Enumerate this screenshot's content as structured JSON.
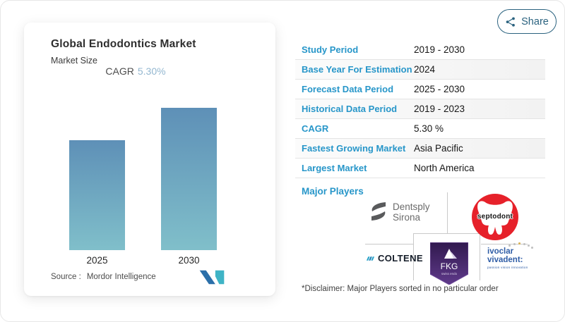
{
  "share_button": {
    "label": "Share"
  },
  "chart_card": {
    "title": "Global Endodontics Market",
    "subtitle": "Market Size",
    "cagr_label": "CAGR",
    "cagr_value": "5.30%",
    "source_label": "Source :",
    "source_name": "Mordor Intelligence"
  },
  "chart_data": {
    "type": "bar",
    "title": "Global Endodontics Market - Market Size",
    "categories": [
      "2025",
      "2030"
    ],
    "values_relative_pct": [
      77,
      100
    ],
    "cagr": "5.30%",
    "ylabel": "",
    "note": "No numeric y-axis shown; bar heights are relative, 2030 bar taller than 2025.",
    "bar_gradient_top": "#5e90b7",
    "bar_gradient_bottom": "#80bfca"
  },
  "info_table": {
    "rows": [
      {
        "label": "Study Period",
        "value": "2019 - 2030"
      },
      {
        "label": "Base Year For Estimation",
        "value": "2024"
      },
      {
        "label": "Forecast Data Period",
        "value": "2025 - 2030"
      },
      {
        "label": "Historical Data Period",
        "value": "2019 - 2023"
      },
      {
        "label": "CAGR",
        "value": "5.30 %"
      },
      {
        "label": "Fastest Growing Market",
        "value": "Asia Pacific"
      },
      {
        "label": "Largest Market",
        "value": "North America"
      }
    ]
  },
  "major_players": {
    "heading": "Major Players",
    "disclaimer": "*Disclaimer: Major Players sorted in no particular order",
    "players": [
      {
        "name": "Dentsply Sirona",
        "line1": "Dentsply",
        "line2": "Sirona"
      },
      {
        "name": "Septodont",
        "text": "septodont"
      },
      {
        "name": "Coltene",
        "text": "COLTENE"
      },
      {
        "name": "FKG Swiss Endo",
        "text": "FKG",
        "sub": "swiss endo"
      },
      {
        "name": "Ivoclar Vivadent",
        "line1": "ivoclar",
        "line2": "vivadent:",
        "tagline": "passion vision innovation"
      }
    ]
  },
  "colors": {
    "accent_blue": "#2796c9",
    "share_teal": "#2a627f",
    "cagr_value_blue": "#93b7d0",
    "septodont_red": "#e6212a",
    "fkg_purple": "#4a2a72",
    "coltene_dark": "#141c28",
    "ivoclar_blue": "#2f5da6",
    "mordor_logo_blue": "#2b6fa9",
    "mordor_logo_teal": "#3fb4c6"
  }
}
